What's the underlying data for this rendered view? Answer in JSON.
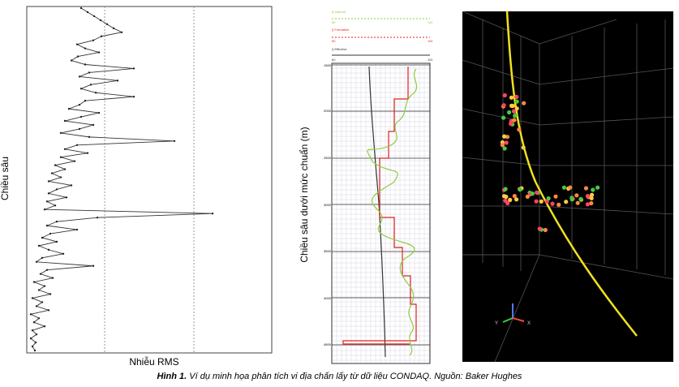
{
  "panel_rms": {
    "ylabel": "Chiều sâu",
    "xlabel": "Nhiễu RMS",
    "chart_data": {
      "type": "line",
      "title": "",
      "xlabel": "Nhiễu RMS",
      "ylabel": "Chiều sâu",
      "grid": "vertical dotted",
      "x": [
        100,
        108,
        116,
        124,
        132,
        140,
        150,
        125,
        115,
        95,
        105,
        122,
        96,
        88,
        105,
        165,
        110,
        98,
        145,
        112,
        100,
        118,
        165,
        105,
        98,
        85,
        122,
        100,
        80,
        115,
        98,
        75,
        110,
        215,
        95,
        80,
        108,
        75,
        92,
        68,
        80,
        64,
        75,
        60,
        88,
        70,
        60,
        82,
        58,
        68,
        55,
        262,
        120,
        70,
        58,
        95,
        62,
        52,
        70,
        48,
        60,
        78,
        52,
        45,
        115,
        58,
        50,
        65,
        42,
        55,
        48,
        62,
        40,
        52,
        45,
        60,
        38,
        48,
        42,
        55,
        40,
        45,
        38,
        44,
        40,
        43
      ]
    }
  },
  "panel_log": {
    "ylabel": "Chiều sâu dưới mức chuẩn (m)",
    "legend": [
      {
        "label": "§ Internal",
        "color": "#8ccc3c"
      },
      {
        "label": "§ Formation",
        "color": "#e02020"
      },
      {
        "label": "§ Effective",
        "color": "#333333"
      }
    ],
    "scale_ticks": [
      "60",
      "70",
      "80",
      "90",
      "100",
      "110"
    ],
    "depth_ticks": [
      "1500",
      "2000",
      "2500",
      "3000",
      "3500",
      "4000",
      "4500"
    ]
  },
  "panel_3d": {
    "axis_labels": [
      "Y",
      "X"
    ]
  },
  "caption": {
    "label": "Hình 1.",
    "text": " Ví dụ minh họa phân tích vi địa chấn lấy từ dữ liệu CONDAQ. Nguồn: Baker Hughes"
  }
}
